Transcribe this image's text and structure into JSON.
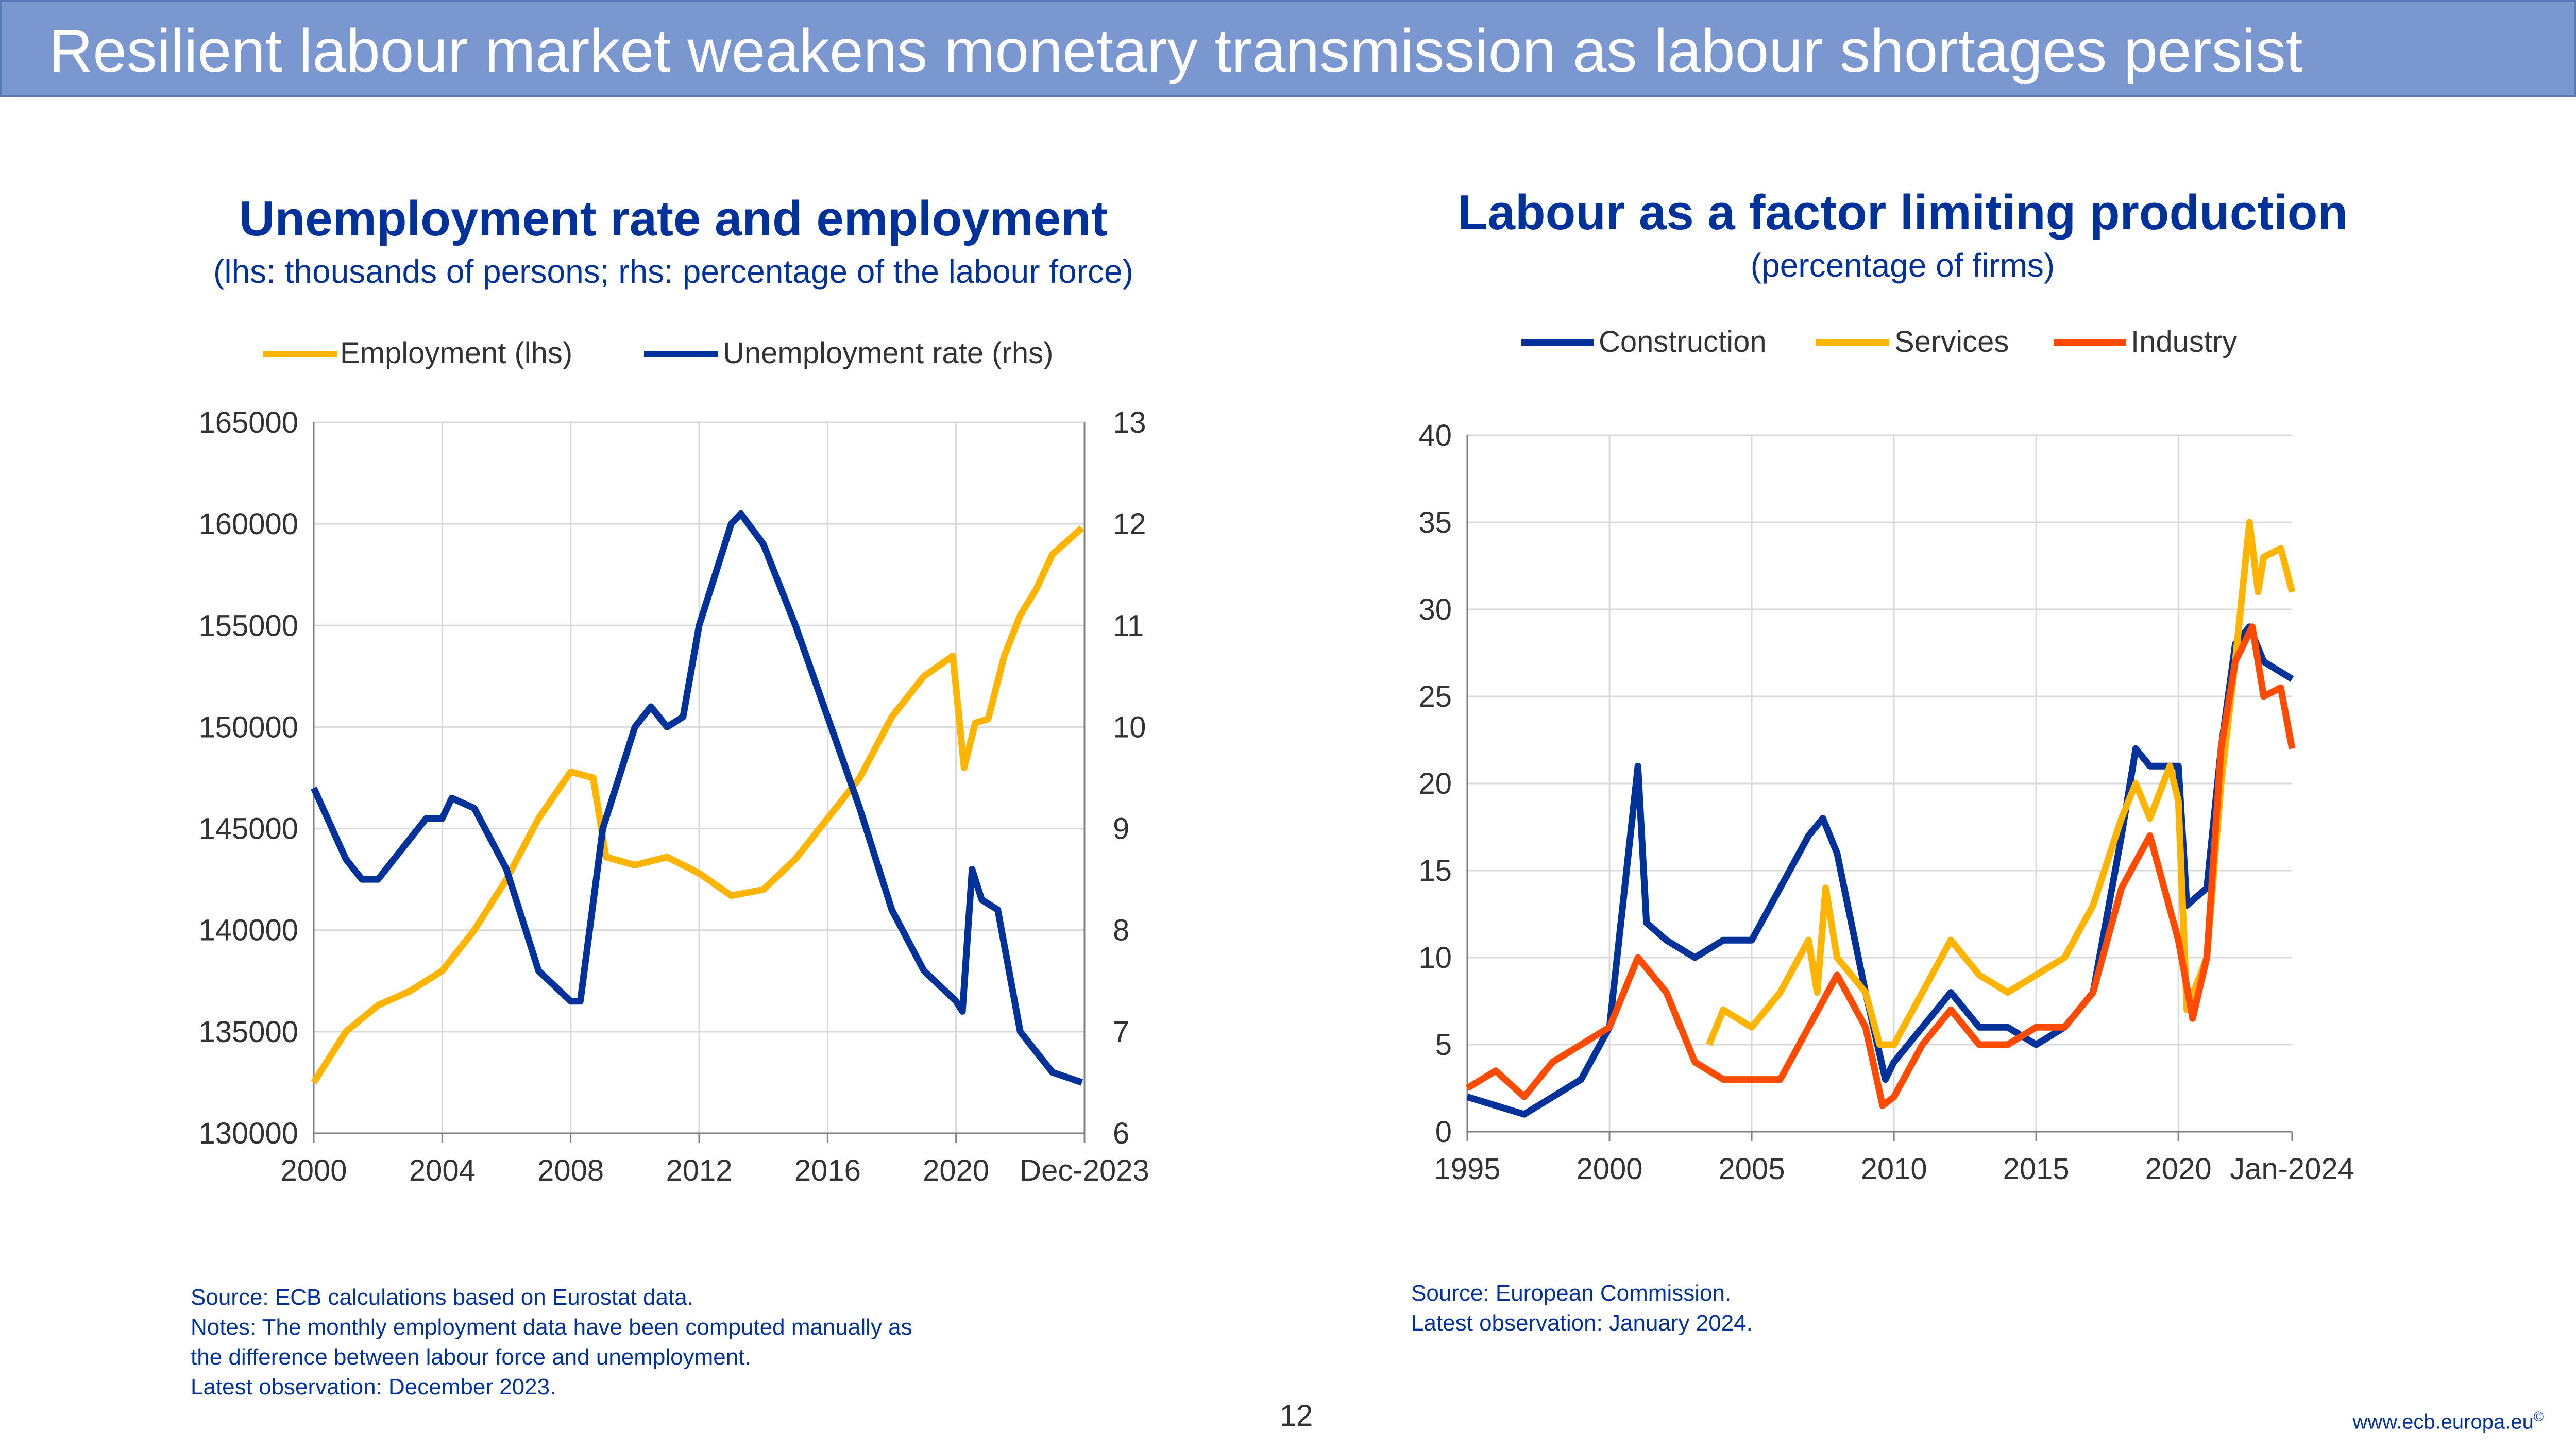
{
  "header": {
    "title": "Resilient labour market weakens monetary transmission as labour shortages persist"
  },
  "colors": {
    "navy": "#003299",
    "yellow": "#FFB400",
    "orange": "#FF4B00",
    "header_bg": "#7b97cf"
  },
  "left": {
    "title": "Unemployment rate and employment",
    "subtitle": "(lhs: thousands of persons; rhs: percentage of the labour force)",
    "source": [
      "Source: ECB calculations based on Eurostat data.",
      "Notes: The monthly employment data have been computed manually as",
      "the difference between labour force and unemployment.",
      "Latest observation: December 2023."
    ]
  },
  "right": {
    "title": "Labour as a factor limiting production",
    "subtitle": "(percentage of firms)",
    "source": [
      "Source: European Commission.",
      "Latest observation: January 2024."
    ]
  },
  "footer": {
    "page": "12",
    "url": "www.ecb.europa.eu",
    "copyright": "©"
  },
  "chart_data": [
    {
      "type": "line",
      "title": "Unemployment rate and employment",
      "xlim": [
        2000,
        2024
      ],
      "xticks": [
        "2000",
        "2004",
        "2008",
        "2012",
        "2016",
        "2020",
        "Dec-2023"
      ],
      "xtick_values": [
        2000,
        2004,
        2008,
        2012,
        2016,
        2020,
        2024
      ],
      "ylim_left": [
        130000,
        165000
      ],
      "yticks_left": [
        "130000",
        "135000",
        "140000",
        "145000",
        "150000",
        "155000",
        "160000",
        "165000"
      ],
      "ylim_right": [
        6,
        13
      ],
      "yticks_right": [
        "6",
        "7",
        "8",
        "9",
        "10",
        "11",
        "12",
        "13"
      ],
      "grid": true,
      "legend_position": "top",
      "series": [
        {
          "name": "Employment (lhs)",
          "color": "#FFB400",
          "axis": "left",
          "points": [
            [
              2000,
              132500
            ],
            [
              2001,
              135000
            ],
            [
              2002,
              136300
            ],
            [
              2003,
              137000
            ],
            [
              2004,
              138000
            ],
            [
              2005,
              140000
            ],
            [
              2006,
              142500
            ],
            [
              2007,
              145500
            ],
            [
              2008,
              147800
            ],
            [
              2008.7,
              147500
            ],
            [
              2009.1,
              143600
            ],
            [
              2010,
              143200
            ],
            [
              2011,
              143600
            ],
            [
              2012,
              142800
            ],
            [
              2013,
              141700
            ],
            [
              2014,
              142000
            ],
            [
              2015,
              143500
            ],
            [
              2016,
              145500
            ],
            [
              2017,
              147500
            ],
            [
              2018,
              150500
            ],
            [
              2019,
              152500
            ],
            [
              2019.9,
              153500
            ],
            [
              2020.25,
              148000
            ],
            [
              2020.6,
              150200
            ],
            [
              2021,
              150400
            ],
            [
              2021.5,
              153500
            ],
            [
              2022,
              155500
            ],
            [
              2022.5,
              156800
            ],
            [
              2023,
              158500
            ],
            [
              2023.92,
              159800
            ]
          ]
        },
        {
          "name": "Unemployment rate (rhs)",
          "color": "#003299",
          "axis": "right",
          "points": [
            [
              2000,
              9.4
            ],
            [
              2001,
              8.7
            ],
            [
              2001.5,
              8.5
            ],
            [
              2002,
              8.5
            ],
            [
              2003,
              8.9
            ],
            [
              2003.5,
              9.1
            ],
            [
              2004,
              9.1
            ],
            [
              2004.3,
              9.3
            ],
            [
              2005,
              9.2
            ],
            [
              2006,
              8.6
            ],
            [
              2007,
              7.6
            ],
            [
              2008,
              7.3
            ],
            [
              2008.3,
              7.3
            ],
            [
              2009,
              9.0
            ],
            [
              2010,
              10.0
            ],
            [
              2010.5,
              10.2
            ],
            [
              2011,
              10.0
            ],
            [
              2011.5,
              10.1
            ],
            [
              2012,
              11.0
            ],
            [
              2013,
              12.0
            ],
            [
              2013.3,
              12.1
            ],
            [
              2014,
              11.8
            ],
            [
              2015,
              11.0
            ],
            [
              2016,
              10.1
            ],
            [
              2017,
              9.2
            ],
            [
              2018,
              8.2
            ],
            [
              2019,
              7.6
            ],
            [
              2020,
              7.3
            ],
            [
              2020.2,
              7.2
            ],
            [
              2020.5,
              8.6
            ],
            [
              2020.8,
              8.3
            ],
            [
              2021.3,
              8.2
            ],
            [
              2022,
              7.0
            ],
            [
              2022.5,
              6.8
            ],
            [
              2023,
              6.6
            ],
            [
              2023.92,
              6.5
            ]
          ]
        }
      ]
    },
    {
      "type": "line",
      "title": "Labour as a factor limiting production",
      "xlim": [
        1995,
        2024
      ],
      "xticks": [
        "1995",
        "2000",
        "2005",
        "2010",
        "2015",
        "2020",
        "Jan-2024"
      ],
      "xtick_values": [
        1995,
        2000,
        2005,
        2010,
        2015,
        2020,
        2024
      ],
      "ylim": [
        0,
        40
      ],
      "yticks": [
        "0",
        "5",
        "10",
        "15",
        "20",
        "25",
        "30",
        "35",
        "40"
      ],
      "grid": true,
      "legend_position": "top",
      "series": [
        {
          "name": "Construction",
          "color": "#003299",
          "points": [
            [
              1995,
              2
            ],
            [
              1997,
              1
            ],
            [
              1999,
              3
            ],
            [
              2000,
              6
            ],
            [
              2001,
              21
            ],
            [
              2001.3,
              12
            ],
            [
              2002,
              11
            ],
            [
              2003,
              10
            ],
            [
              2004,
              11
            ],
            [
              2005,
              11
            ],
            [
              2006,
              14
            ],
            [
              2007,
              17
            ],
            [
              2007.5,
              18
            ],
            [
              2008,
              16
            ],
            [
              2009,
              8
            ],
            [
              2009.7,
              3
            ],
            [
              2010,
              4
            ],
            [
              2011,
              6
            ],
            [
              2012,
              8
            ],
            [
              2013,
              6
            ],
            [
              2014,
              6
            ],
            [
              2015,
              5
            ],
            [
              2016,
              6
            ],
            [
              2017,
              8
            ],
            [
              2018,
              17
            ],
            [
              2018.5,
              22
            ],
            [
              2019,
              21
            ],
            [
              2020,
              21
            ],
            [
              2020.3,
              13
            ],
            [
              2021,
              14
            ],
            [
              2021.5,
              22
            ],
            [
              2022,
              28
            ],
            [
              2022.5,
              29
            ],
            [
              2023,
              27
            ],
            [
              2024,
              26
            ]
          ]
        },
        {
          "name": "Services",
          "color": "#FFB400",
          "points": [
            [
              2003.5,
              5
            ],
            [
              2004,
              7
            ],
            [
              2005,
              6
            ],
            [
              2006,
              8
            ],
            [
              2007,
              11
            ],
            [
              2007.3,
              8
            ],
            [
              2007.6,
              14
            ],
            [
              2008,
              10
            ],
            [
              2009,
              8
            ],
            [
              2009.5,
              5
            ],
            [
              2010,
              5
            ],
            [
              2011,
              8
            ],
            [
              2012,
              11
            ],
            [
              2013,
              9
            ],
            [
              2014,
              8
            ],
            [
              2015,
              9
            ],
            [
              2016,
              10
            ],
            [
              2017,
              13
            ],
            [
              2018,
              18
            ],
            [
              2018.5,
              20
            ],
            [
              2019,
              18
            ],
            [
              2019.7,
              21
            ],
            [
              2020,
              19
            ],
            [
              2020.3,
              7
            ],
            [
              2021,
              10
            ],
            [
              2021.5,
              20
            ],
            [
              2022,
              27
            ],
            [
              2022.5,
              35
            ],
            [
              2022.8,
              31
            ],
            [
              2023,
              33
            ],
            [
              2023.6,
              33.5
            ],
            [
              2024,
              31
            ]
          ]
        },
        {
          "name": "Industry",
          "color": "#FF4B00",
          "points": [
            [
              1995,
              2.5
            ],
            [
              1996,
              3.5
            ],
            [
              1997,
              2
            ],
            [
              1998,
              4
            ],
            [
              1999,
              5
            ],
            [
              2000,
              6
            ],
            [
              2001,
              10
            ],
            [
              2002,
              8
            ],
            [
              2003,
              4
            ],
            [
              2004,
              3
            ],
            [
              2005,
              3
            ],
            [
              2006,
              3
            ],
            [
              2007,
              6
            ],
            [
              2008,
              9
            ],
            [
              2009,
              6
            ],
            [
              2009.6,
              1.5
            ],
            [
              2010,
              2
            ],
            [
              2011,
              5
            ],
            [
              2012,
              7
            ],
            [
              2013,
              5
            ],
            [
              2014,
              5
            ],
            [
              2015,
              6
            ],
            [
              2016,
              6
            ],
            [
              2017,
              8
            ],
            [
              2018,
              14
            ],
            [
              2019,
              17
            ],
            [
              2019.5,
              14
            ],
            [
              2020,
              11
            ],
            [
              2020.5,
              6.5
            ],
            [
              2021,
              10
            ],
            [
              2021.5,
              22
            ],
            [
              2022,
              27
            ],
            [
              2022.6,
              29
            ],
            [
              2023,
              25
            ],
            [
              2023.6,
              25.5
            ],
            [
              2024,
              22
            ]
          ]
        }
      ]
    }
  ]
}
